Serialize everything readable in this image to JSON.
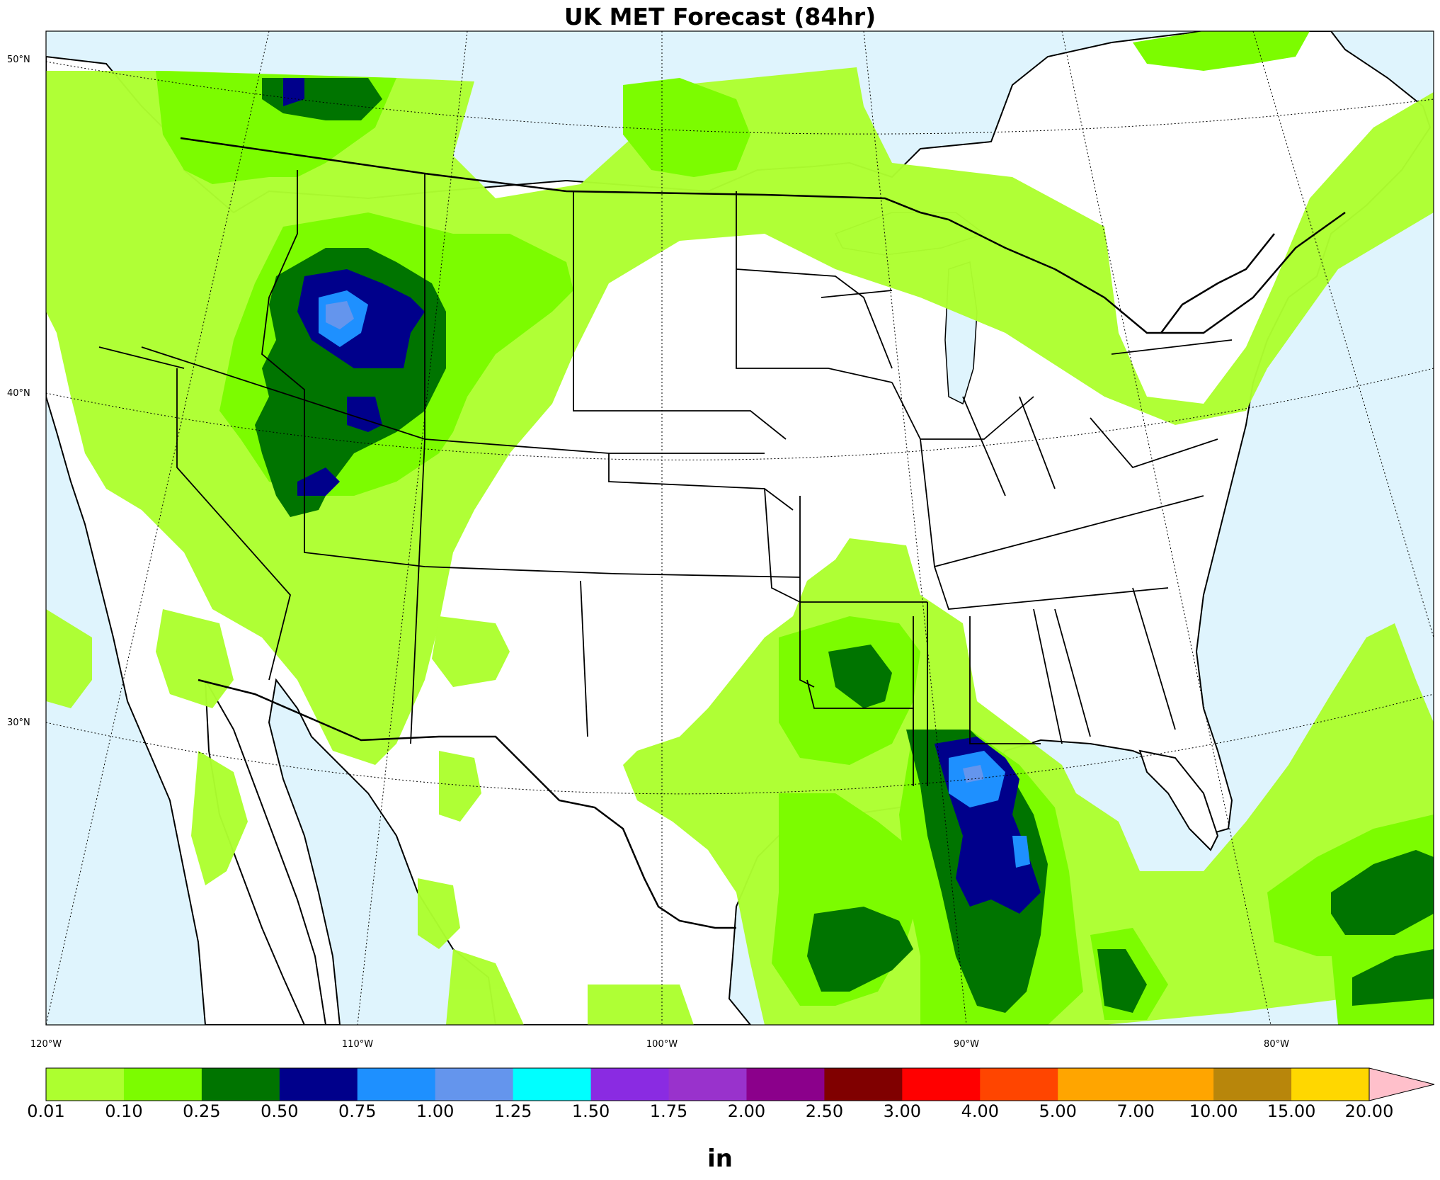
{
  "title": "UK MET Forecast (84hr)",
  "map": {
    "ocean_color": "#dff4fd",
    "land_color": "#ffffff",
    "lat_labels": [
      {
        "text": "50°N",
        "lat": 50
      },
      {
        "text": "40°N",
        "lat": 40
      },
      {
        "text": "30°N",
        "lat": 30
      }
    ],
    "lon_labels": [
      {
        "text": "120°W",
        "lon": -120
      },
      {
        "text": "110°W",
        "lon": -110
      },
      {
        "text": "100°W",
        "lon": -100
      },
      {
        "text": "90°W",
        "lon": -90
      },
      {
        "text": "80°W",
        "lon": -80
      }
    ]
  },
  "colorbar": {
    "units": "in",
    "levels": [
      "0.01",
      "0.10",
      "0.25",
      "0.50",
      "0.75",
      "1.00",
      "1.25",
      "1.50",
      "1.75",
      "2.00",
      "2.50",
      "3.00",
      "4.00",
      "5.00",
      "7.00",
      "10.00",
      "15.00",
      "20.00"
    ],
    "colors": [
      "#adff2f",
      "#7cfc00",
      "#007400",
      "#00008b",
      "#1e90ff",
      "#6495ed",
      "#00ffff",
      "#8a2be2",
      "#9932cc",
      "#8b008b",
      "#800000",
      "#ff0000",
      "#ff4500",
      "#ffa500",
      "#ffa500",
      "#b8860b",
      "#ffd700",
      "#ffff00"
    ],
    "extend_color": "#ffc0cb"
  }
}
